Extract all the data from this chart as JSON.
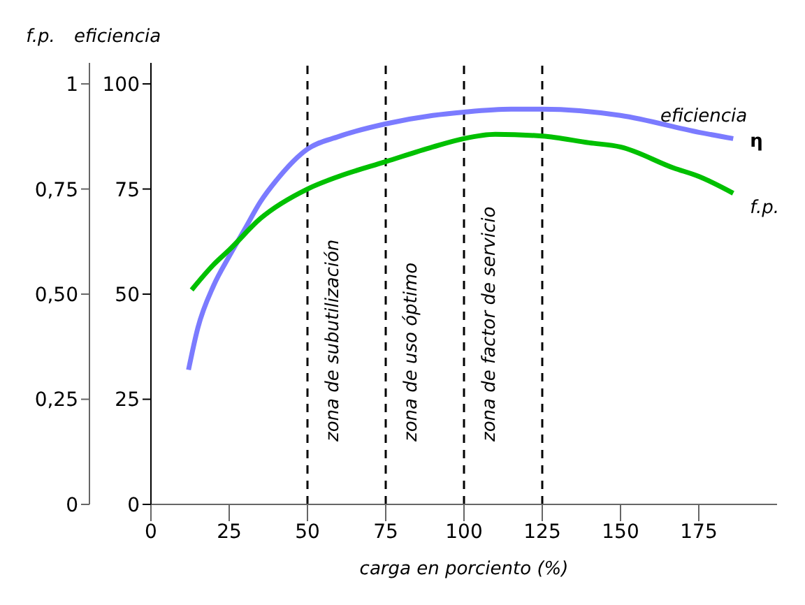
{
  "chart_data": {
    "type": "line",
    "xlabel": "carga en porciento (%)",
    "ylabel": "eficiencia",
    "y2label": "f.p.",
    "xlim": [
      0,
      200
    ],
    "xticks": [
      0,
      25,
      50,
      75,
      100,
      125,
      150,
      175
    ],
    "ylim": [
      0,
      105
    ],
    "yticks": [
      0,
      25,
      50,
      75,
      100
    ],
    "y2lim": [
      0,
      1.05
    ],
    "y2ticks": [
      {
        "value": 0,
        "label": "0"
      },
      {
        "value": 0.25,
        "label": "0,25"
      },
      {
        "value": 0.5,
        "label": "0,50"
      },
      {
        "value": 0.75,
        "label": "0,75"
      },
      {
        "value": 1,
        "label": "1"
      }
    ],
    "marker": "none",
    "series": [
      {
        "name": "η",
        "color": "#7b7bff",
        "x": [
          12,
          15,
          20,
          25,
          30,
          35,
          40,
          50,
          60,
          75,
          90,
          100,
          115,
          125,
          150,
          175,
          186
        ],
        "values": [
          32,
          42,
          52,
          59,
          65.5,
          72,
          77,
          84.5,
          87.5,
          90.5,
          92.5,
          93.3,
          94,
          94,
          92.5,
          88.5,
          87
        ]
      },
      {
        "name": "f.p.",
        "color": "#00c000",
        "axis": "y2",
        "x": [
          13,
          20,
          25,
          35,
          50,
          60,
          75,
          90,
          100,
          110,
          125,
          140,
          150,
          167,
          175,
          186
        ],
        "values": [
          0.51,
          0.57,
          0.605,
          0.68,
          0.75,
          0.78,
          0.815,
          0.85,
          0.87,
          0.88,
          0.876,
          0.86,
          0.85,
          0.8,
          0.78,
          0.74
        ]
      }
    ],
    "ref_lines": [
      {
        "axis": "x",
        "value": 50,
        "label": "zona de subutilización",
        "line_style": "dashed",
        "color": "#000000"
      },
      {
        "axis": "x",
        "value": 75,
        "label": "zona de uso óptimo",
        "line_style": "dashed",
        "color": "#000000"
      },
      {
        "axis": "x",
        "value": 100,
        "label": "zona de factor de servicio",
        "line_style": "dashed",
        "color": "#000000"
      },
      {
        "axis": "x",
        "value": 125,
        "line_style": "dashed",
        "color": "#000000"
      }
    ],
    "annotations": [
      "eficiencia"
    ]
  }
}
